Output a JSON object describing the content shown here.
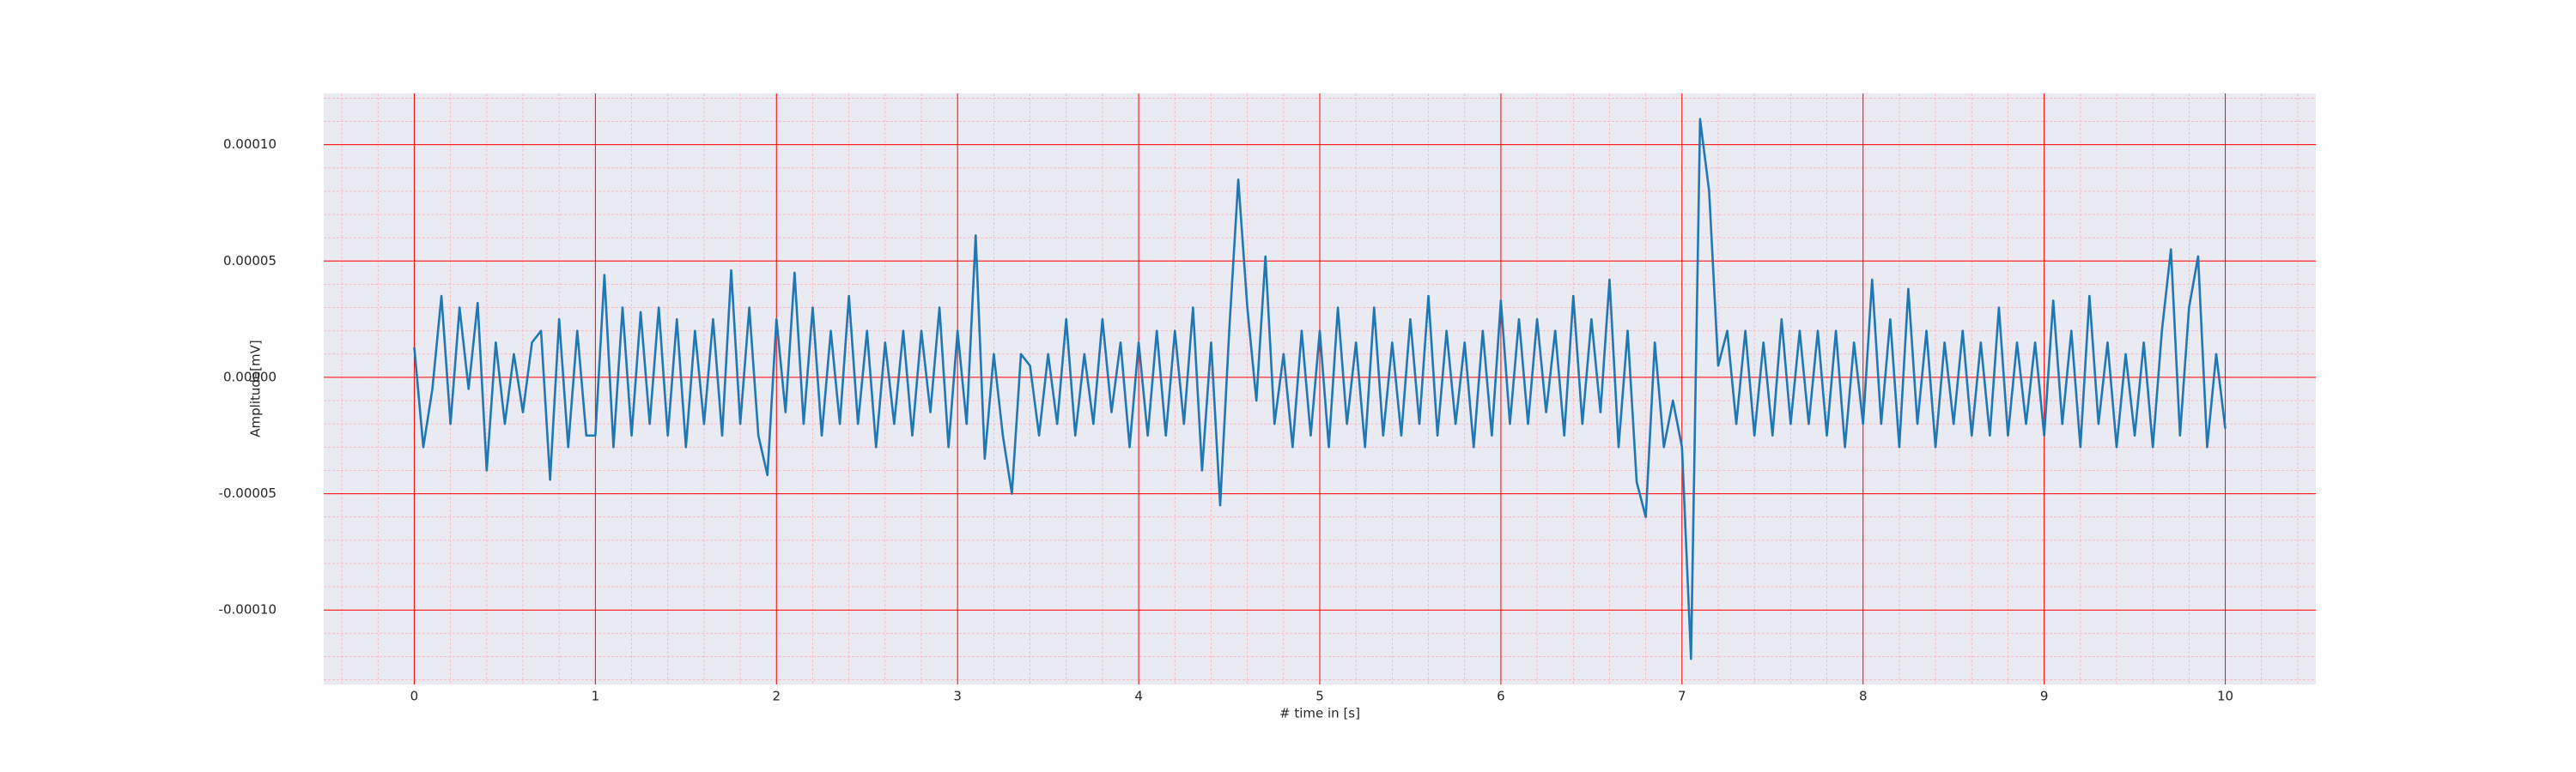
{
  "chart_data": {
    "type": "line",
    "xlabel": "# time in [s]",
    "ylabel": "Amplitude[mV]",
    "color": "#1f77b4",
    "grid": true,
    "minor_grid": true,
    "grid_color": "#ff0000",
    "minor_grid_color": "#ffb0b8",
    "background": "#eaeaf2",
    "xlim": [
      -0.5,
      10.5
    ],
    "ylim": [
      -0.000132,
      0.000122
    ],
    "xticks": [
      0,
      1,
      2,
      3,
      4,
      5,
      6,
      7,
      8,
      9,
      10
    ],
    "yticks": [
      {
        "value": -0.0001,
        "label": "-0.00010"
      },
      {
        "value": -5e-05,
        "label": "-0.00005"
      },
      {
        "value": 0,
        "label": "0.00000"
      },
      {
        "value": 5e-05,
        "label": "0.00005"
      },
      {
        "value": 0.0001,
        "label": "0.00010"
      }
    ],
    "x": [
      0,
      0.05,
      0.1,
      0.15,
      0.2,
      0.25,
      0.3,
      0.35,
      0.4,
      0.45,
      0.5,
      0.55,
      0.6,
      0.65,
      0.7,
      0.75,
      0.8,
      0.85,
      0.9,
      0.95,
      1,
      1.05,
      1.1,
      1.15,
      1.2,
      1.25,
      1.3,
      1.35,
      1.4,
      1.45,
      1.5,
      1.55,
      1.6,
      1.65,
      1.7,
      1.75,
      1.8,
      1.85,
      1.9,
      1.95,
      2,
      2.05,
      2.1,
      2.15,
      2.2,
      2.25,
      2.3,
      2.35,
      2.4,
      2.45,
      2.5,
      2.55,
      2.6,
      2.65,
      2.7,
      2.75,
      2.8,
      2.85,
      2.9,
      2.95,
      3,
      3.05,
      3.1,
      3.15,
      3.2,
      3.25,
      3.3,
      3.35,
      3.4,
      3.45,
      3.5,
      3.55,
      3.6,
      3.65,
      3.7,
      3.75,
      3.8,
      3.85,
      3.9,
      3.95,
      4,
      4.05,
      4.1,
      4.15,
      4.2,
      4.25,
      4.3,
      4.35,
      4.4,
      4.45,
      4.5,
      4.55,
      4.6,
      4.65,
      4.7,
      4.75,
      4.8,
      4.85,
      4.9,
      4.95,
      5,
      5.05,
      5.1,
      5.15,
      5.2,
      5.25,
      5.3,
      5.35,
      5.4,
      5.45,
      5.5,
      5.55,
      5.6,
      5.65,
      5.7,
      5.75,
      5.8,
      5.85,
      5.9,
      5.95,
      6,
      6.05,
      6.1,
      6.15,
      6.2,
      6.25,
      6.3,
      6.35,
      6.4,
      6.45,
      6.5,
      6.55,
      6.6,
      6.65,
      6.7,
      6.75,
      6.8,
      6.85,
      6.9,
      6.95,
      7,
      7.05,
      7.1,
      7.15,
      7.2,
      7.25,
      7.3,
      7.35,
      7.4,
      7.45,
      7.5,
      7.55,
      7.6,
      7.65,
      7.7,
      7.75,
      7.8,
      7.85,
      7.9,
      7.95,
      8,
      8.05,
      8.1,
      8.15,
      8.2,
      8.25,
      8.3,
      8.35,
      8.4,
      8.45,
      8.5,
      8.55,
      8.6,
      8.65,
      8.7,
      8.75,
      8.8,
      8.85,
      8.9,
      8.95,
      9,
      9.05,
      9.1,
      9.15,
      9.2,
      9.25,
      9.3,
      9.35,
      9.4,
      9.45,
      9.5,
      9.55,
      9.6,
      9.65,
      9.7,
      9.75,
      9.8,
      9.85,
      9.9,
      9.95,
      10
    ],
    "values": [
      1.3e-05,
      -3e-05,
      -5e-06,
      3.5e-05,
      -2e-05,
      3e-05,
      -5e-06,
      3.2e-05,
      -4e-05,
      1.5e-05,
      -2e-05,
      1e-05,
      -1.5e-05,
      1.5e-05,
      2e-05,
      -4.4e-05,
      2.5e-05,
      -3e-05,
      2e-05,
      -2.5e-05,
      -2.5e-05,
      4.4e-05,
      -3e-05,
      3e-05,
      -2.5e-05,
      2.8e-05,
      -2e-05,
      3e-05,
      -2.5e-05,
      2.5e-05,
      -3e-05,
      2e-05,
      -2e-05,
      2.5e-05,
      -2.5e-05,
      4.6e-05,
      -2e-05,
      3e-05,
      -2.5e-05,
      -4.2e-05,
      2.5e-05,
      -1.5e-05,
      4.5e-05,
      -2e-05,
      3e-05,
      -2.5e-05,
      2e-05,
      -2e-05,
      3.5e-05,
      -2e-05,
      2e-05,
      -3e-05,
      1.5e-05,
      -2e-05,
      2e-05,
      -2.5e-05,
      2e-05,
      -1.5e-05,
      3e-05,
      -3e-05,
      2e-05,
      -2e-05,
      6.1e-05,
      -3.5e-05,
      1e-05,
      -2.5e-05,
      -5e-05,
      1e-05,
      5e-06,
      -2.5e-05,
      1e-05,
      -2e-05,
      2.5e-05,
      -2.5e-05,
      1e-05,
      -2e-05,
      2.5e-05,
      -1.5e-05,
      1.5e-05,
      -3e-05,
      1.5e-05,
      -2.5e-05,
      2e-05,
      -2.5e-05,
      2e-05,
      -2e-05,
      3e-05,
      -4e-05,
      1.5e-05,
      -5.5e-05,
      2e-05,
      8.5e-05,
      3e-05,
      -1e-05,
      5.2e-05,
      -2e-05,
      1e-05,
      -3e-05,
      2e-05,
      -2.5e-05,
      2e-05,
      -3e-05,
      3e-05,
      -2e-05,
      1.5e-05,
      -3e-05,
      3e-05,
      -2.5e-05,
      1.5e-05,
      -2.5e-05,
      2.5e-05,
      -2e-05,
      3.5e-05,
      -2.5e-05,
      2e-05,
      -2e-05,
      1.5e-05,
      -3e-05,
      2e-05,
      -2.5e-05,
      3.3e-05,
      -2e-05,
      2.5e-05,
      -2e-05,
      2.5e-05,
      -1.5e-05,
      2e-05,
      -2.5e-05,
      3.5e-05,
      -2e-05,
      2.5e-05,
      -1.5e-05,
      4.2e-05,
      -3e-05,
      2e-05,
      -4.5e-05,
      -6e-05,
      1.5e-05,
      -3e-05,
      -1e-05,
      -3e-05,
      -0.000121,
      0.000111,
      8e-05,
      5e-06,
      2e-05,
      -2e-05,
      2e-05,
      -2.5e-05,
      1.5e-05,
      -2.5e-05,
      2.5e-05,
      -2e-05,
      2e-05,
      -2e-05,
      2e-05,
      -2.5e-05,
      2e-05,
      -3e-05,
      1.5e-05,
      -2e-05,
      4.2e-05,
      -2e-05,
      2.5e-05,
      -3e-05,
      3.8e-05,
      -2e-05,
      2e-05,
      -3e-05,
      1.5e-05,
      -2e-05,
      2e-05,
      -2.5e-05,
      1.5e-05,
      -2.5e-05,
      3e-05,
      -2.5e-05,
      1.5e-05,
      -2e-05,
      1.5e-05,
      -2.5e-05,
      3.3e-05,
      -2e-05,
      2e-05,
      -3e-05,
      3.5e-05,
      -2e-05,
      1.5e-05,
      -3e-05,
      1e-05,
      -2.5e-05,
      1.5e-05,
      -3e-05,
      2e-05,
      5.5e-05,
      -2.5e-05,
      3e-05,
      5.2e-05,
      -3e-05,
      1e-05,
      -2.2e-05
    ]
  }
}
